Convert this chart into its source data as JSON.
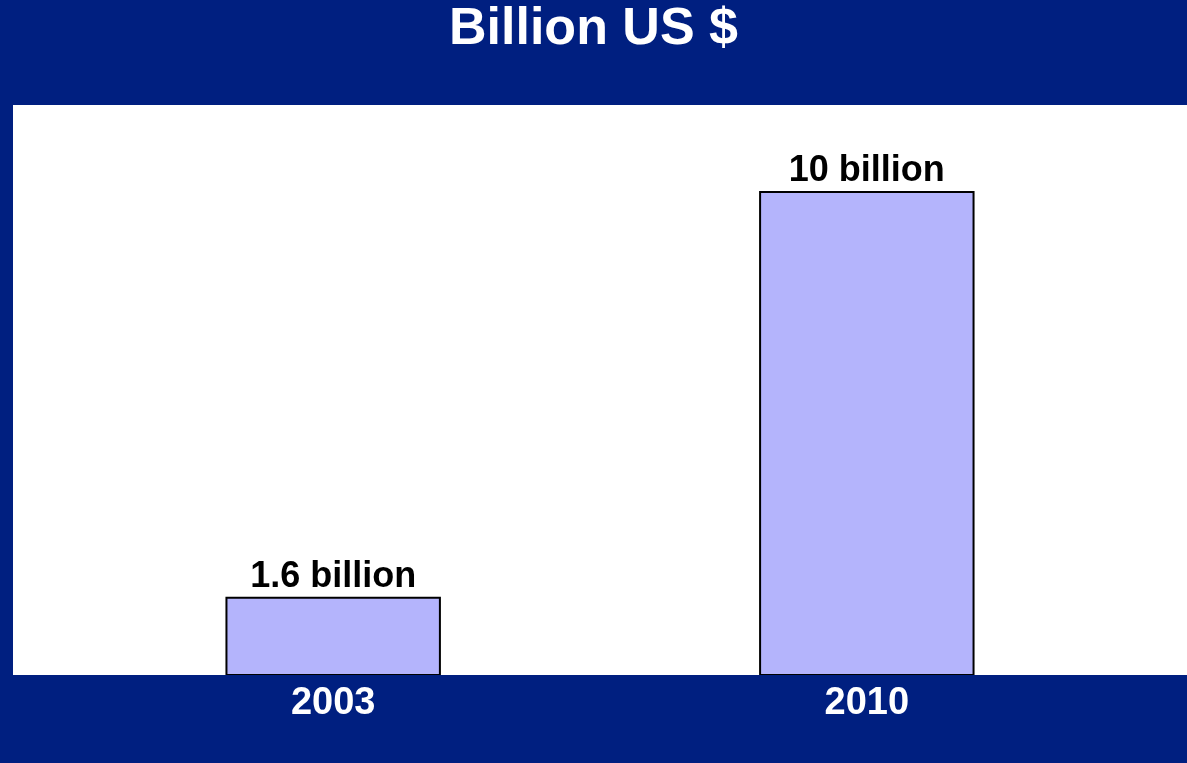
{
  "chart_data": {
    "type": "bar",
    "title": "Billion US $",
    "categories": [
      "2003",
      "2010"
    ],
    "values": [
      1.6,
      10
    ],
    "value_labels": [
      "1.6 billion",
      "10 billion"
    ],
    "color": "#b4b4fc"
  }
}
